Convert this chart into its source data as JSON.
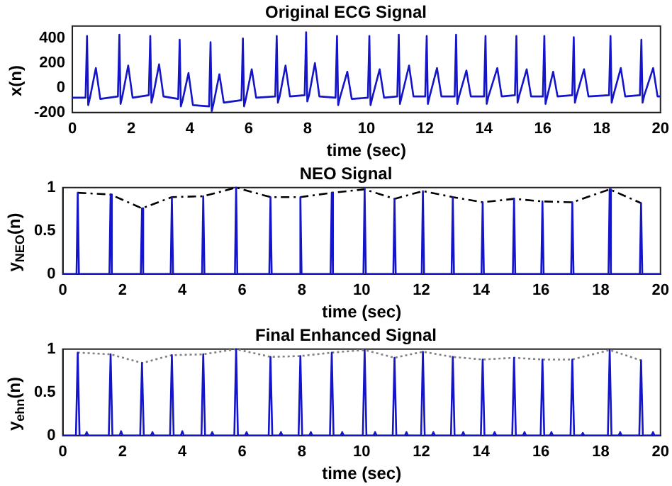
{
  "chart_data": [
    {
      "type": "line",
      "title": "Original ECG Signal",
      "xlabel": "time (sec)",
      "ylabel": "x(n)",
      "xlim": [
        0,
        20
      ],
      "xticks": [
        0,
        2,
        4,
        6,
        8,
        10,
        12,
        14,
        16,
        18,
        20
      ],
      "ylim": [
        -200,
        500
      ],
      "yticks": [
        -200,
        0,
        200,
        400
      ],
      "grid": false,
      "series": [
        {
          "color": "#1414c8",
          "x": [
            0,
            0.45,
            0.5,
            0.54,
            0.6,
            0.8,
            0.95,
            1.55,
            1.6,
            1.64,
            1.7,
            1.9,
            2.05,
            2.6,
            2.65,
            2.69,
            2.75,
            2.95,
            3.1,
            3.6,
            3.65,
            3.69,
            3.75,
            3.95,
            4.1,
            4.65,
            4.7,
            4.74,
            4.8,
            5.0,
            5.15,
            5.75,
            5.8,
            5.84,
            5.9,
            6.1,
            6.25,
            6.9,
            6.95,
            6.99,
            7.05,
            7.25,
            7.4,
            7.9,
            7.95,
            7.99,
            8.05,
            8.25,
            8.4,
            8.95,
            9.0,
            9.04,
            9.1,
            9.35,
            9.5,
            10.05,
            10.1,
            10.14,
            10.2,
            10.45,
            10.6,
            11.05,
            11.1,
            11.14,
            11.2,
            11.45,
            11.6,
            12.0,
            12.05,
            12.09,
            12.15,
            12.4,
            12.55,
            13.0,
            13.05,
            13.09,
            13.15,
            13.4,
            13.55,
            14.0,
            14.05,
            14.09,
            14.15,
            14.45,
            14.6,
            15.05,
            15.1,
            15.14,
            15.2,
            15.45,
            15.6,
            16.0,
            16.05,
            16.09,
            16.15,
            16.35,
            16.5,
            17.0,
            17.05,
            17.09,
            17.15,
            17.4,
            17.55,
            18.25,
            18.3,
            18.34,
            18.4,
            18.65,
            18.8,
            19.3,
            19.35,
            19.39,
            19.45,
            19.75,
            19.9,
            20
          ],
          "values": [
            -80,
            -80,
            420,
            -140,
            -80,
            160,
            -90,
            -70,
            430,
            -130,
            -70,
            180,
            -80,
            -60,
            420,
            -120,
            -60,
            190,
            -70,
            -90,
            390,
            -150,
            -100,
            120,
            -140,
            -150,
            370,
            -190,
            -130,
            110,
            -120,
            -100,
            400,
            -150,
            -90,
            150,
            -80,
            -70,
            420,
            -120,
            -70,
            180,
            -70,
            -60,
            450,
            -110,
            -60,
            200,
            -70,
            -80,
            420,
            -140,
            -80,
            130,
            -90,
            -80,
            420,
            -140,
            -80,
            150,
            -80,
            -70,
            430,
            -130,
            -70,
            180,
            -70,
            -70,
            420,
            -130,
            -70,
            160,
            -70,
            -70,
            430,
            -130,
            -70,
            140,
            -70,
            -70,
            420,
            -130,
            -70,
            160,
            -70,
            -60,
            420,
            -120,
            -60,
            150,
            -70,
            -70,
            420,
            -130,
            -70,
            130,
            -70,
            -60,
            410,
            -120,
            -60,
            150,
            -70,
            -60,
            420,
            -120,
            -60,
            160,
            -70,
            -60,
            390,
            -120,
            -60,
            160,
            -70,
            -70
          ]
        }
      ]
    },
    {
      "type": "line",
      "title": "NEO Signal",
      "xlabel": "time (sec)",
      "ylabel": "y$_{NEO}$(n)",
      "xlim": [
        0,
        20
      ],
      "xticks": [
        0,
        2,
        4,
        6,
        8,
        10,
        12,
        14,
        16,
        18,
        20
      ],
      "ylim": [
        0,
        1
      ],
      "yticks": [
        0,
        0.5,
        1
      ],
      "grid": false,
      "series": [
        {
          "color": "#1414c8",
          "x": [
            0,
            0.46,
            0.5,
            0.54,
            1.56,
            1.6,
            1.64,
            2.61,
            2.65,
            2.69,
            3.61,
            3.65,
            3.69,
            4.66,
            4.7,
            4.74,
            5.76,
            5.8,
            5.84,
            6.91,
            6.95,
            6.99,
            7.91,
            7.95,
            7.99,
            8.96,
            9.0,
            9.04,
            10.06,
            10.1,
            10.14,
            11.06,
            11.1,
            11.14,
            12.01,
            12.05,
            12.09,
            13.01,
            13.05,
            13.09,
            14.01,
            14.05,
            14.09,
            15.06,
            15.1,
            15.14,
            16.01,
            16.05,
            16.09,
            17.01,
            17.05,
            17.09,
            18.26,
            18.3,
            18.34,
            19.31,
            19.35,
            19.39,
            20
          ],
          "values": [
            0,
            0,
            0.94,
            0,
            0,
            0.92,
            0,
            0,
            0.76,
            0,
            0,
            0.89,
            0,
            0,
            0.9,
            0,
            0,
            1.0,
            0,
            0,
            0.89,
            0,
            0,
            0.89,
            0,
            0,
            0.94,
            0,
            0,
            0.98,
            0,
            0,
            0.87,
            0,
            0,
            0.96,
            0,
            0,
            0.89,
            0,
            0,
            0.83,
            0,
            0,
            0.87,
            0,
            0,
            0.84,
            0,
            0,
            0.83,
            0,
            0,
            0.98,
            0,
            0,
            0.82,
            0,
            0
          ]
        },
        {
          "color": "#000000",
          "line_style": "dashed",
          "x": [
            0.5,
            1.6,
            2.65,
            3.65,
            4.7,
            5.8,
            6.95,
            7.95,
            9.0,
            10.1,
            11.1,
            12.05,
            13.05,
            14.05,
            15.1,
            16.05,
            17.05,
            18.3,
            19.35
          ],
          "values": [
            0.94,
            0.92,
            0.76,
            0.89,
            0.9,
            1.0,
            0.89,
            0.89,
            0.94,
            0.98,
            0.87,
            0.96,
            0.89,
            0.83,
            0.87,
            0.84,
            0.83,
            0.98,
            0.82
          ]
        }
      ]
    },
    {
      "type": "line",
      "title": "Final Enhanced Signal",
      "xlabel": "time (sec)",
      "ylabel": "y$_{ehn}$(n)",
      "xlim": [
        0,
        20
      ],
      "xticks": [
        0,
        2,
        4,
        6,
        8,
        10,
        12,
        14,
        16,
        18,
        20
      ],
      "ylim": [
        0,
        1
      ],
      "yticks": [
        0,
        0.5,
        1
      ],
      "grid": false,
      "series": [
        {
          "color": "#1414c8",
          "x": [
            0,
            0.44,
            0.5,
            0.56,
            0.75,
            0.8,
            0.85,
            1.54,
            1.6,
            1.66,
            1.9,
            1.95,
            2.0,
            2.59,
            2.65,
            2.71,
            2.95,
            3.0,
            3.05,
            3.59,
            3.65,
            3.71,
            3.95,
            4.0,
            4.05,
            4.64,
            4.7,
            4.76,
            4.95,
            5.0,
            5.05,
            5.74,
            5.8,
            5.86,
            6.1,
            6.15,
            6.2,
            6.89,
            6.95,
            7.01,
            7.25,
            7.3,
            7.35,
            7.89,
            7.95,
            8.01,
            8.25,
            8.3,
            8.35,
            8.94,
            9.0,
            9.06,
            9.3,
            9.35,
            9.4,
            10.04,
            10.1,
            10.16,
            10.4,
            10.45,
            10.5,
            11.04,
            11.1,
            11.16,
            11.45,
            11.5,
            11.55,
            11.99,
            12.05,
            12.11,
            12.35,
            12.4,
            12.45,
            12.99,
            13.05,
            13.11,
            13.35,
            13.4,
            13.45,
            13.99,
            14.05,
            14.11,
            14.4,
            14.45,
            14.5,
            15.04,
            15.1,
            15.16,
            15.4,
            15.45,
            15.5,
            15.99,
            16.05,
            16.11,
            16.3,
            16.35,
            16.4,
            16.99,
            17.05,
            17.11,
            17.35,
            17.4,
            17.45,
            18.24,
            18.3,
            18.36,
            18.6,
            18.65,
            18.7,
            19.29,
            19.35,
            19.41,
            19.7,
            19.75,
            19.8,
            20
          ],
          "values": [
            0,
            0,
            0.96,
            0,
            0,
            0.04,
            0,
            0,
            0.94,
            0,
            0,
            0.05,
            0,
            0,
            0.84,
            0,
            0,
            0.04,
            0,
            0,
            0.93,
            0,
            0,
            0.05,
            0,
            0,
            0.94,
            0,
            0,
            0.04,
            0,
            0,
            1.0,
            0,
            0,
            0.04,
            0,
            0,
            0.91,
            0,
            0,
            0.04,
            0,
            0,
            0.92,
            0,
            0,
            0.04,
            0,
            0,
            0.96,
            0,
            0,
            0.04,
            0,
            0,
            0.99,
            0,
            0,
            0.04,
            0,
            0,
            0.9,
            0,
            0,
            0.04,
            0,
            0,
            0.97,
            0,
            0,
            0.04,
            0,
            0,
            0.91,
            0,
            0,
            0.04,
            0,
            0,
            0.88,
            0,
            0,
            0.04,
            0,
            0,
            0.9,
            0,
            0,
            0.04,
            0,
            0,
            0.88,
            0,
            0,
            0.04,
            0,
            0,
            0.88,
            0,
            0,
            0.03,
            0,
            0,
            0.99,
            0,
            0,
            0.04,
            0,
            0,
            0.87,
            0,
            0,
            0.04,
            0,
            0
          ]
        },
        {
          "color": "#808080",
          "line_style": "dotted",
          "x": [
            0.5,
            1.6,
            2.65,
            3.65,
            4.7,
            5.8,
            6.95,
            7.95,
            9.0,
            10.1,
            11.1,
            12.05,
            13.05,
            14.05,
            15.1,
            16.05,
            17.05,
            18.3,
            19.35
          ],
          "values": [
            0.96,
            0.94,
            0.84,
            0.93,
            0.94,
            1.0,
            0.91,
            0.92,
            0.96,
            0.99,
            0.9,
            0.97,
            0.91,
            0.88,
            0.9,
            0.88,
            0.88,
            0.99,
            0.87
          ]
        }
      ]
    }
  ]
}
